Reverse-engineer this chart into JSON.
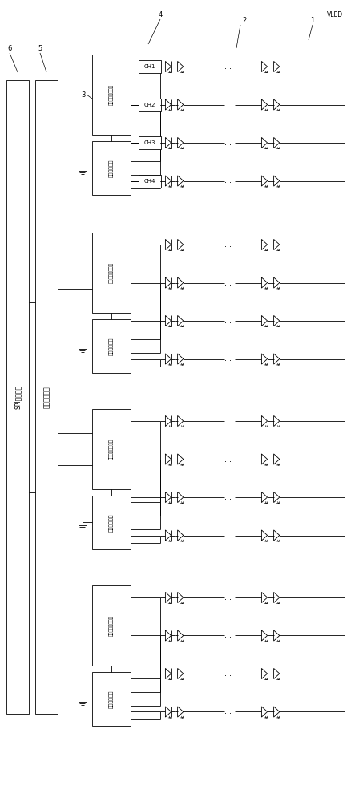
{
  "fig_width": 4.39,
  "fig_height": 10.0,
  "bg_color": "#ffffff",
  "lw": 0.6,
  "spi_label": "SPI接口元件",
  "mcu_label": "微处理器元件",
  "ctrl_label": "驱动控制调节模块",
  "sw_label": "初始调节元件",
  "ch_labels": [
    "CH1",
    "CH2",
    "CH3",
    "CH4"
  ],
  "ref_1": "1",
  "ref_2": "2",
  "ref_3": "3",
  "ref_4": "4",
  "ref_5": "5",
  "ref_6": "6",
  "vled_label": "VLED",
  "n_groups": 4,
  "n_channels": 4
}
